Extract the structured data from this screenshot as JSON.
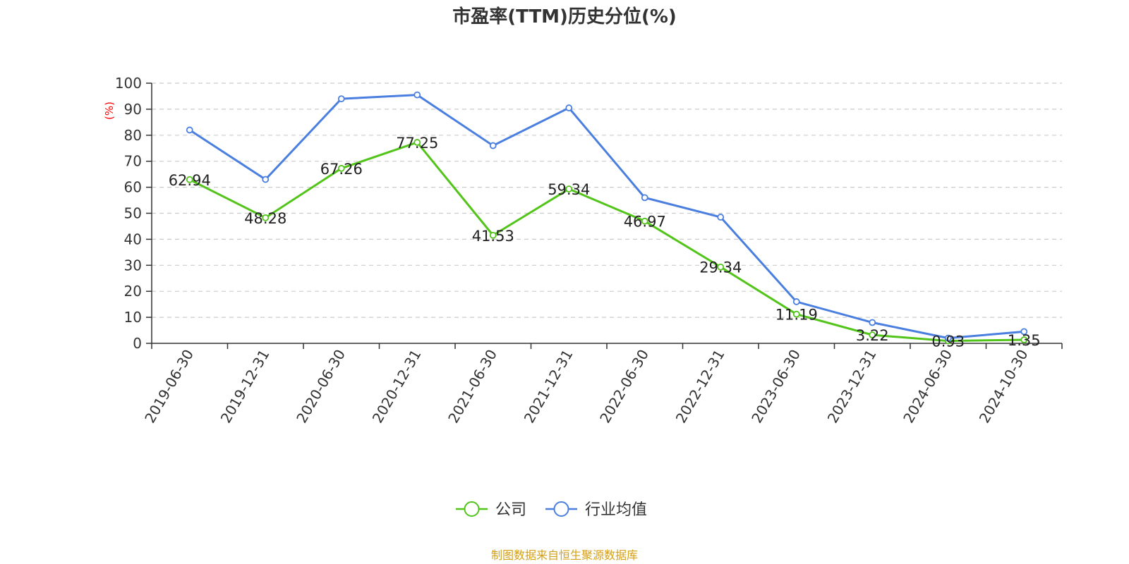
{
  "chart_data": {
    "type": "line",
    "title": "市盈率(TTM)历史分位(%)",
    "ylabel": "(%)",
    "xlabel": "",
    "ylim": [
      0,
      100
    ],
    "yticks": [
      0,
      10,
      20,
      30,
      40,
      50,
      60,
      70,
      80,
      90,
      100
    ],
    "categories": [
      "2019-06-30",
      "2019-12-31",
      "2020-06-30",
      "2020-12-31",
      "2021-06-30",
      "2021-12-31",
      "2022-06-30",
      "2022-12-31",
      "2023-06-30",
      "2023-12-31",
      "2024-06-30",
      "2024-10-30"
    ],
    "series": [
      {
        "name": "公司",
        "color": "#52c41a",
        "values": [
          62.94,
          48.28,
          67.26,
          77.25,
          41.53,
          59.34,
          46.97,
          29.34,
          11.19,
          3.22,
          0.93,
          1.35
        ],
        "labels": [
          "62.94",
          "48.28",
          "67.26",
          "77.25",
          "41.53",
          "59.34",
          "46.97",
          "29.34",
          "11.19",
          "3.22",
          "0.93",
          "1.35"
        ]
      },
      {
        "name": "行业均值",
        "color": "#4a7fe0",
        "values": [
          82,
          63,
          94,
          95.5,
          76,
          90.5,
          56,
          48.5,
          16,
          8,
          2,
          4.5
        ]
      }
    ],
    "grid": true,
    "legend_position": "bottom"
  },
  "source_note": "制图数据来自恒生聚源数据库",
  "colors": {
    "ylabel": "#ff0000",
    "source": "#d4a017",
    "grid": "#cccccc",
    "axis": "#333333"
  }
}
